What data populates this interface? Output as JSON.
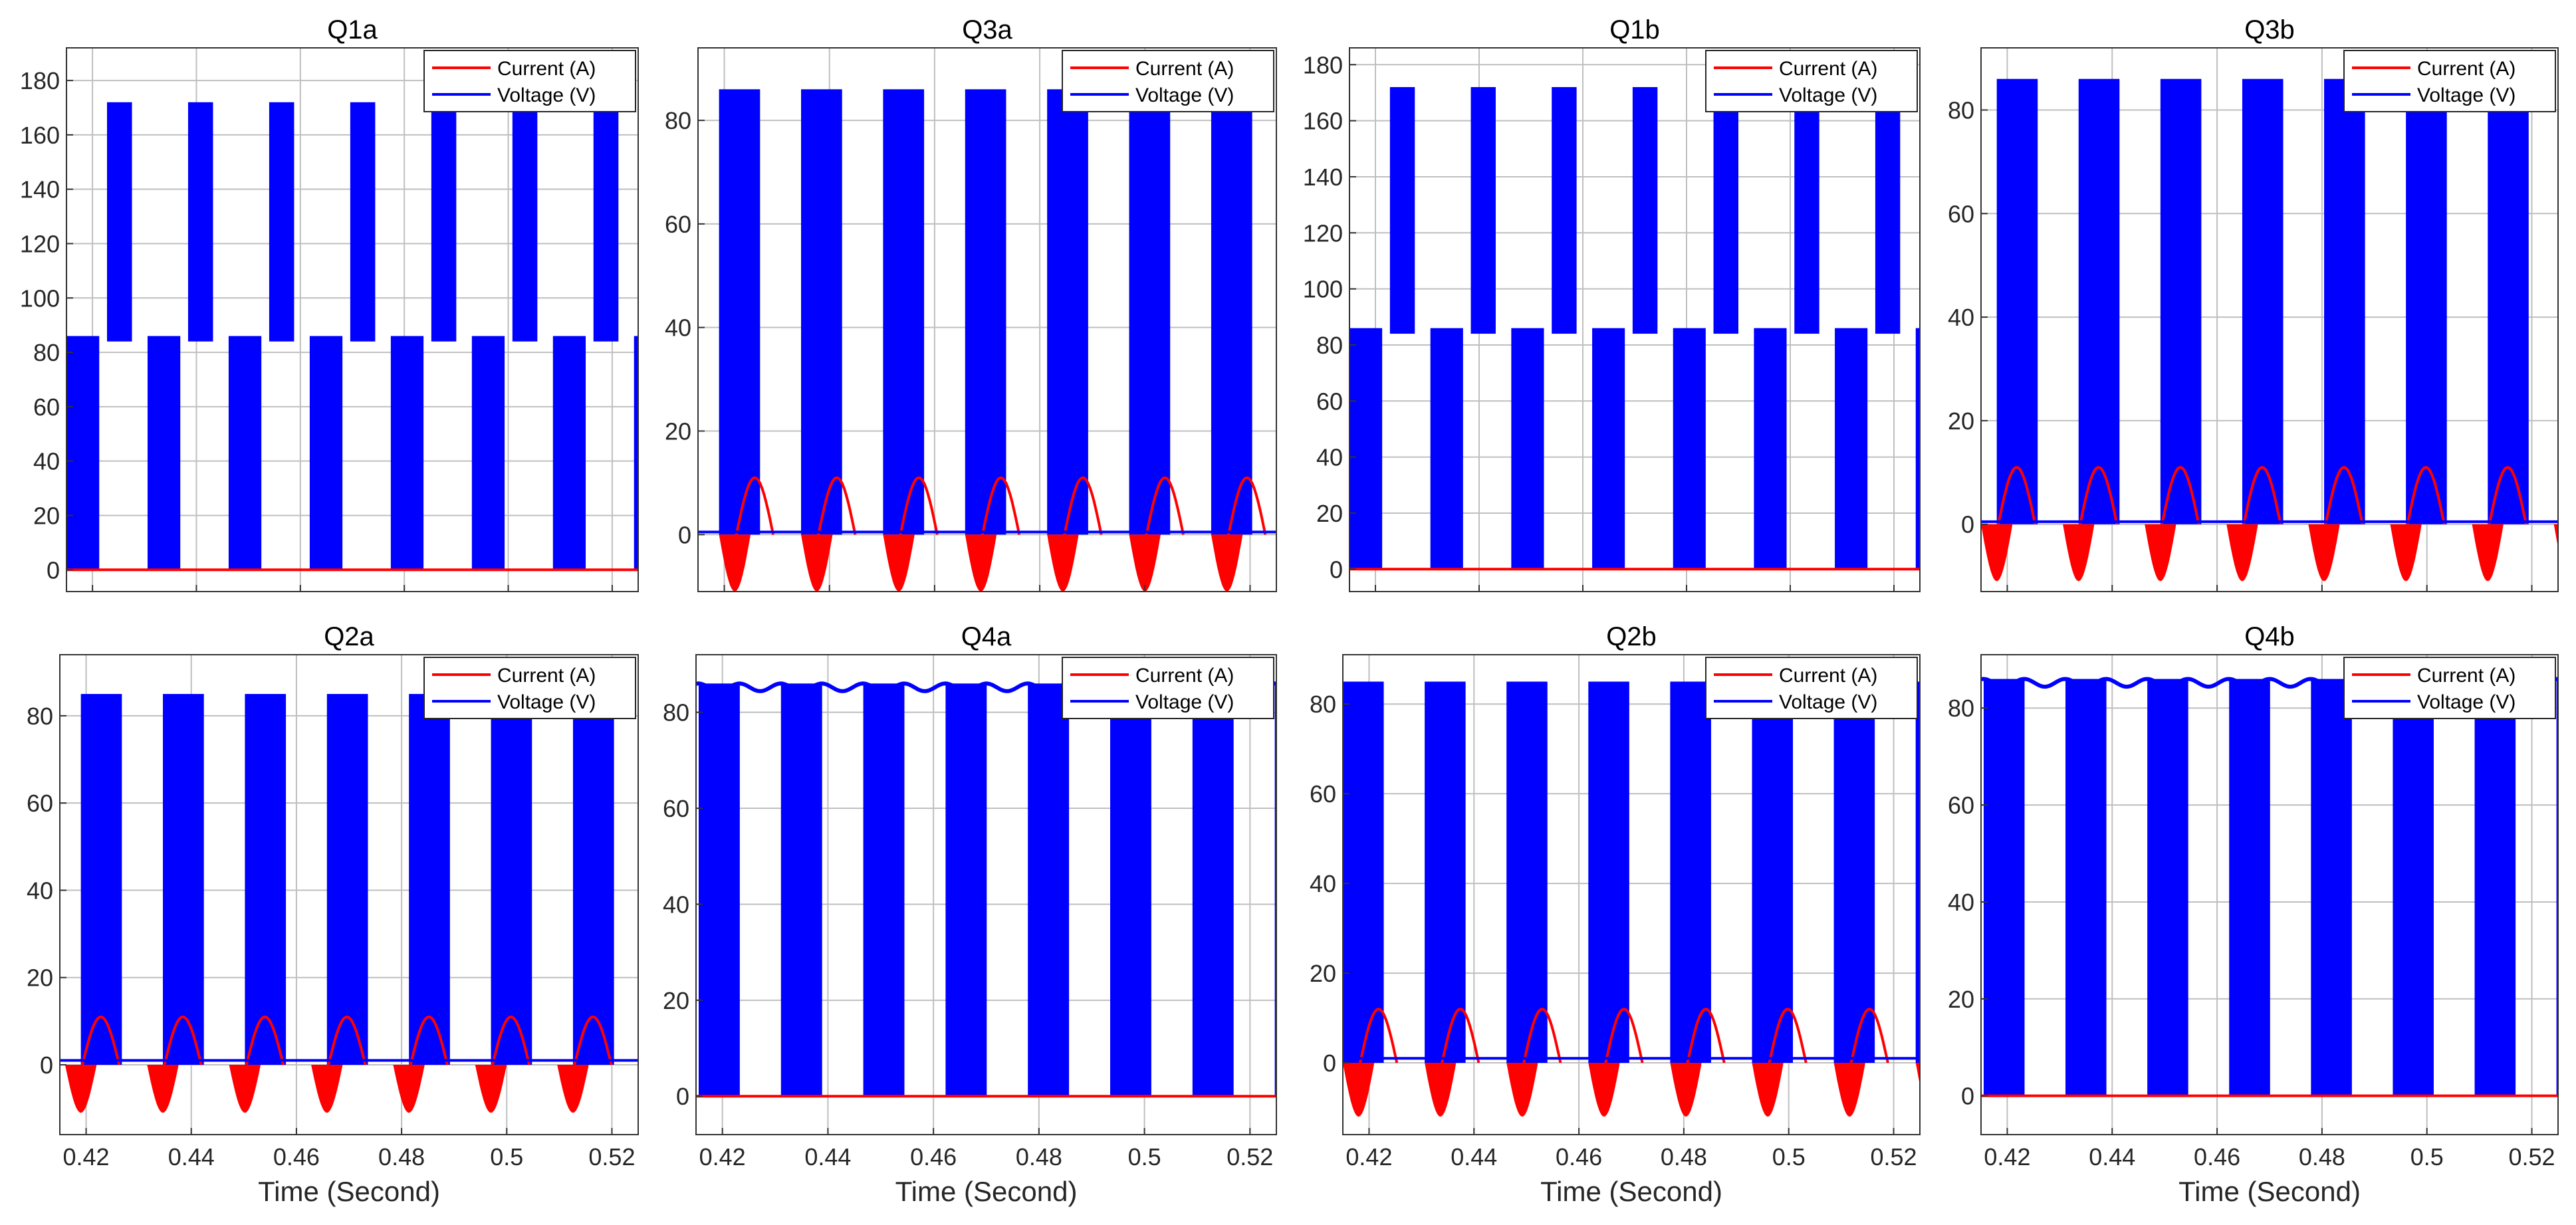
{
  "figure": {
    "xlabel": "Time (Second)",
    "colors": {
      "current": "#ff0000",
      "voltage": "#0000ff",
      "grid": "#bfbfbf",
      "axis": "#333333"
    }
  },
  "chart_data": [
    {
      "type": "line",
      "title": "Q1a",
      "xlabel": "",
      "ylabel": "",
      "xlim": [
        0.415,
        0.525
      ],
      "ylim": [
        -8,
        192
      ],
      "yticks": [
        0,
        20,
        40,
        60,
        80,
        100,
        120,
        140,
        160,
        180
      ],
      "xticks": [
        0.42,
        0.44,
        0.46,
        0.48,
        0.5,
        0.52
      ],
      "xtick_labels": [],
      "grid": true,
      "legend": "top-right",
      "legend_entries": [
        "Current (A)",
        "Voltage (V)"
      ],
      "series": [
        {
          "name": "Current (A)",
          "peak": 0,
          "trough": 0,
          "baseline": 0,
          "offset": 0,
          "blocks": "none"
        },
        {
          "name": "Voltage (V)",
          "pattern": "switching-pulses",
          "blocks": "two-level",
          "low_block": [
            0,
            86
          ],
          "high_block": [
            84,
            172
          ],
          "phase": 0
        }
      ]
    },
    {
      "type": "line",
      "title": "Q3a",
      "xlabel": "",
      "ylabel": "",
      "xlim": [
        0.415,
        0.525
      ],
      "ylim": [
        -11,
        94
      ],
      "yticks": [
        0,
        20,
        40,
        60,
        80
      ],
      "xticks": [
        0.42,
        0.44,
        0.46,
        0.48,
        0.5,
        0.52
      ],
      "xtick_labels": [],
      "grid": true,
      "legend": "top-right",
      "legend_entries": [
        "Current (A)",
        "Voltage (V)"
      ],
      "series": [
        {
          "name": "Current (A)",
          "peak": 11,
          "trough": -11,
          "baseline": 0.5,
          "offset": 0.0,
          "blocks": "lobes"
        },
        {
          "name": "Voltage (V)",
          "pattern": "switching-pulses",
          "blocks": "single",
          "block": [
            0,
            86
          ],
          "phase": 0.004
        }
      ]
    },
    {
      "type": "line",
      "title": "Q1b",
      "xlabel": "",
      "ylabel": "",
      "xlim": [
        0.415,
        0.525
      ],
      "ylim": [
        -8,
        186
      ],
      "yticks": [
        0,
        20,
        40,
        60,
        80,
        100,
        120,
        140,
        160,
        180
      ],
      "xticks": [
        0.42,
        0.44,
        0.46,
        0.48,
        0.5,
        0.52
      ],
      "xtick_labels": [],
      "grid": true,
      "legend": "top-right",
      "legend_entries": [
        "Current (A)",
        "Voltage (V)"
      ],
      "series": [
        {
          "name": "Current (A)",
          "peak": 0,
          "trough": 0,
          "baseline": 0,
          "offset": 0,
          "blocks": "none"
        },
        {
          "name": "Voltage (V)",
          "pattern": "switching-pulses",
          "blocks": "two-level",
          "low_block": [
            0,
            86
          ],
          "high_block": [
            84,
            172
          ],
          "phase": 0
        }
      ]
    },
    {
      "type": "line",
      "title": "Q3b",
      "xlabel": "",
      "ylabel": "",
      "xlim": [
        0.415,
        0.525
      ],
      "ylim": [
        -13,
        92
      ],
      "yticks": [
        0,
        20,
        40,
        60,
        80
      ],
      "xticks": [
        0.42,
        0.44,
        0.46,
        0.48,
        0.5,
        0.52
      ],
      "xtick_labels": [],
      "grid": true,
      "legend": "top-right",
      "legend_entries": [
        "Current (A)",
        "Voltage (V)"
      ],
      "series": [
        {
          "name": "Current (A)",
          "peak": 11,
          "trough": -11,
          "baseline": 0.5,
          "offset": -0.003,
          "blocks": "lobes"
        },
        {
          "name": "Voltage (V)",
          "pattern": "switching-pulses",
          "blocks": "single",
          "block": [
            0,
            86
          ],
          "phase": 0.003
        }
      ]
    },
    {
      "type": "line",
      "title": "Q2a",
      "xlabel": "Time (Second)",
      "ylabel": "",
      "xlim": [
        0.415,
        0.525
      ],
      "ylim": [
        -16,
        94
      ],
      "yticks": [
        0,
        20,
        40,
        60,
        80
      ],
      "xticks": [
        0.42,
        0.44,
        0.46,
        0.48,
        0.5,
        0.52
      ],
      "xtick_labels": [
        "0.42",
        "0.44",
        "0.46",
        "0.48",
        "0.5",
        "0.52"
      ],
      "grid": true,
      "legend": "top-right",
      "legend_entries": [
        "Current (A)",
        "Voltage (V)"
      ],
      "series": [
        {
          "name": "Current (A)",
          "peak": 11,
          "trough": -11,
          "baseline": 1,
          "offset": -0.003,
          "blocks": "lobes"
        },
        {
          "name": "Voltage (V)",
          "pattern": "switching-pulses",
          "blocks": "single",
          "block": [
            0,
            85
          ],
          "phase": 0.004
        }
      ]
    },
    {
      "type": "line",
      "title": "Q4a",
      "xlabel": "Time (Second)",
      "ylabel": "",
      "xlim": [
        0.415,
        0.525
      ],
      "ylim": [
        -8,
        92
      ],
      "yticks": [
        0,
        20,
        40,
        60,
        80
      ],
      "xticks": [
        0.42,
        0.44,
        0.46,
        0.48,
        0.5,
        0.52
      ],
      "xtick_labels": [
        "0.42",
        "0.44",
        "0.46",
        "0.48",
        "0.5",
        "0.52"
      ],
      "grid": true,
      "legend": "top-right",
      "legend_entries": [
        "Current (A)",
        "Voltage (V)"
      ],
      "series": [
        {
          "name": "Current (A)",
          "peak": 0.5,
          "trough": -0.5,
          "baseline": 0,
          "offset": 0,
          "blocks": "none"
        },
        {
          "name": "Voltage (V)",
          "pattern": "switching-pulses",
          "blocks": "single",
          "block": [
            0,
            86
          ],
          "phase": 0.0005
        }
      ]
    },
    {
      "type": "line",
      "title": "Q2b",
      "xlabel": "Time (Second)",
      "ylabel": "",
      "xlim": [
        0.415,
        0.525
      ],
      "ylim": [
        -16,
        91
      ],
      "yticks": [
        0,
        20,
        40,
        60,
        80
      ],
      "xticks": [
        0.42,
        0.44,
        0.46,
        0.48,
        0.5,
        0.52
      ],
      "xtick_labels": [
        "0.42",
        "0.44",
        "0.46",
        "0.48",
        "0.5",
        "0.52"
      ],
      "grid": true,
      "legend": "top-right",
      "legend_entries": [
        "Current (A)",
        "Voltage (V)"
      ],
      "series": [
        {
          "name": "Current (A)",
          "peak": 12,
          "trough": -12,
          "baseline": 1,
          "offset": 0.0,
          "blocks": "lobes"
        },
        {
          "name": "Voltage (V)",
          "pattern": "switching-pulses",
          "blocks": "single",
          "block": [
            0,
            85
          ],
          "phase": 0.0
        }
      ]
    },
    {
      "type": "line",
      "title": "Q4b",
      "xlabel": "Time (Second)",
      "ylabel": "",
      "xlim": [
        0.415,
        0.525
      ],
      "ylim": [
        -8,
        91
      ],
      "yticks": [
        0,
        20,
        40,
        60,
        80
      ],
      "xticks": [
        0.42,
        0.44,
        0.46,
        0.48,
        0.5,
        0.52
      ],
      "xtick_labels": [
        "0.42",
        "0.44",
        "0.46",
        "0.48",
        "0.5",
        "0.52"
      ],
      "grid": true,
      "legend": "top-right",
      "legend_entries": [
        "Current (A)",
        "Voltage (V)"
      ],
      "series": [
        {
          "name": "Current (A)",
          "peak": 0.5,
          "trough": -0.5,
          "baseline": 0,
          "offset": 0,
          "blocks": "none"
        },
        {
          "name": "Voltage (V)",
          "pattern": "switching-pulses",
          "blocks": "single",
          "block": [
            0,
            86
          ],
          "phase": 0.0005
        }
      ]
    }
  ]
}
